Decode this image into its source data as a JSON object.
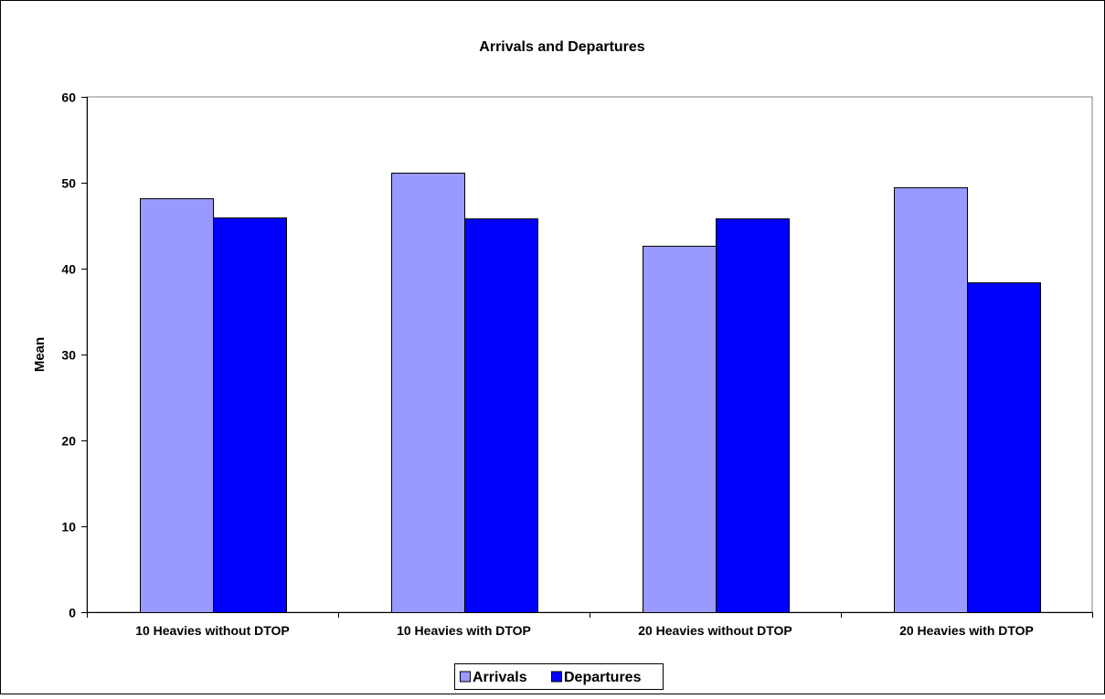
{
  "chart_data": {
    "type": "bar",
    "title": "Arrivals and Departures",
    "xlabel": "",
    "ylabel": "Mean",
    "ylim": [
      0,
      60
    ],
    "yticks": [
      0,
      10,
      20,
      30,
      40,
      50,
      60
    ],
    "categories": [
      "10 Heavies without DTOP",
      "10 Heavies with DTOP",
      "20 Heavies without DTOP",
      "20 Heavies with DTOP"
    ],
    "series": [
      {
        "name": "Arrivals",
        "values": [
          48.2,
          51.2,
          42.7,
          49.5
        ],
        "color": "#9999ff"
      },
      {
        "name": "Departures",
        "values": [
          46.0,
          45.8,
          45.8,
          38.4
        ],
        "color": "#0000ff"
      }
    ],
    "grid": true,
    "legend": "bottom-center",
    "plot_background": "#ffffff"
  }
}
